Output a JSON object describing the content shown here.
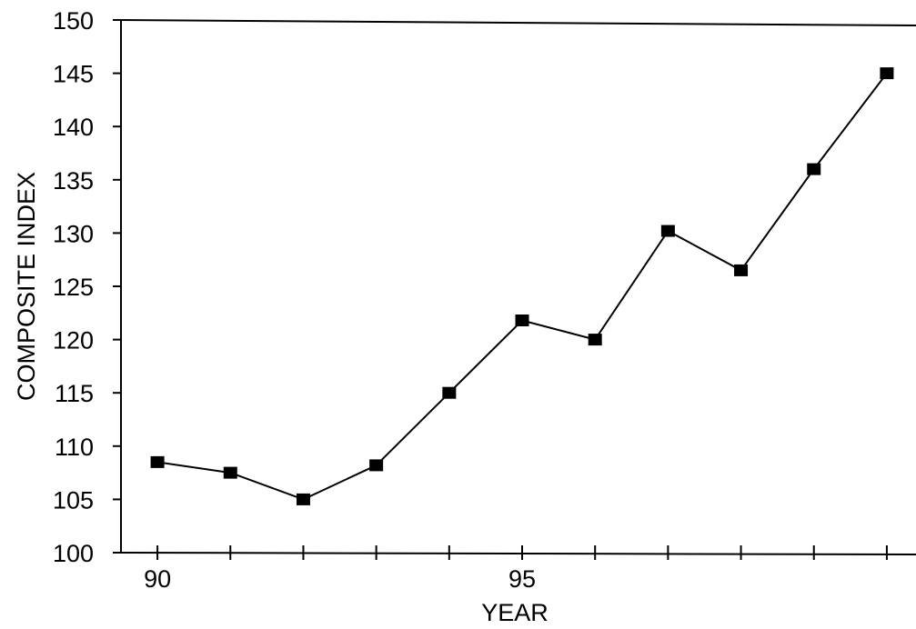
{
  "chart_data": {
    "type": "line",
    "title": "",
    "xlabel": "YEAR",
    "ylabel": "COMPOSITE INDEX",
    "xlim": [
      89.5,
      100.4
    ],
    "ylim": [
      100,
      150
    ],
    "x_tick_labels": [
      {
        "value": 90,
        "label": "90"
      },
      {
        "value": 95,
        "label": "95"
      }
    ],
    "x_ticks": [
      90,
      91,
      92,
      93,
      94,
      95,
      96,
      97,
      98,
      99,
      100
    ],
    "y_ticks": [
      100,
      105,
      110,
      115,
      120,
      125,
      130,
      135,
      140,
      145,
      150
    ],
    "grid": false,
    "marker": "square",
    "series": [
      {
        "x": [
          90,
          91,
          92,
          93,
          94,
          95,
          96,
          97,
          98,
          99,
          100
        ],
        "y": [
          108.5,
          107.5,
          105,
          108.2,
          115,
          121.8,
          120,
          130.2,
          126.5,
          136,
          145
        ]
      }
    ],
    "color": "#000000"
  }
}
